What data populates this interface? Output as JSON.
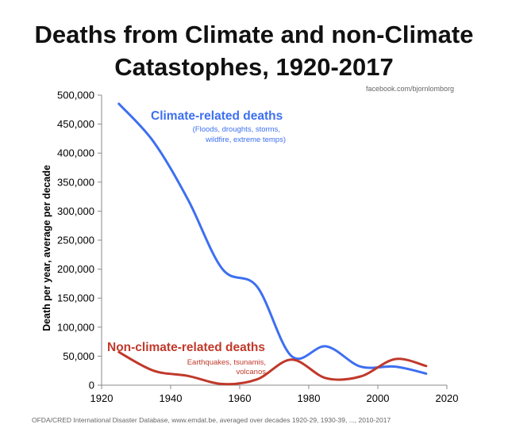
{
  "chart_data": {
    "type": "line",
    "title_line1": "Deaths from Climate and non-Climate",
    "title_line2": "Catastophes, 1920-2017",
    "credit": "facebook.com/bjornlomborg",
    "ylabel": "Death per year, average per decade",
    "xlabel": "",
    "xlim": [
      1920,
      2020
    ],
    "ylim": [
      0,
      500000
    ],
    "xticks": [
      1920,
      1940,
      1960,
      1980,
      2000,
      2020
    ],
    "xtick_labels": [
      "1920",
      "1940",
      "1960",
      "1980",
      "2000",
      "2020"
    ],
    "yticks": [
      0,
      50000,
      100000,
      150000,
      200000,
      250000,
      300000,
      350000,
      400000,
      450000,
      500000
    ],
    "ytick_labels": [
      "0",
      "50,000",
      "100,000",
      "150,000",
      "200,000",
      "250,000",
      "300,000",
      "350,000",
      "400,000",
      "450,000",
      "500,000"
    ],
    "grid": false,
    "series": [
      {
        "name": "Climate-related deaths",
        "subtitle_line1": "(Floods, droughts, storms,",
        "subtitle_line2": "wildfire, extreme temps)",
        "color": "#3d6ff0",
        "x": [
          1925,
          1935,
          1945,
          1955,
          1965,
          1975,
          1985,
          1995,
          2005,
          2014
        ],
        "y": [
          485000,
          420000,
          320000,
          200000,
          170000,
          50000,
          67000,
          32000,
          32000,
          20000
        ]
      },
      {
        "name": "Non-climate-related deaths",
        "subtitle_line1": "Earthquakes, tsunamis,",
        "subtitle_line2": "volcanos",
        "color": "#c0392b",
        "x": [
          1925,
          1935,
          1945,
          1955,
          1965,
          1975,
          1985,
          1995,
          2005,
          2014
        ],
        "y": [
          57000,
          25000,
          16000,
          2000,
          10000,
          44000,
          12000,
          15000,
          45000,
          33000
        ]
      }
    ]
  },
  "source_note": "OFDA/CRED International Disaster Database, www.emdat.be, averaged over decades 1920-29, 1930-39, ..., 2010-2017"
}
